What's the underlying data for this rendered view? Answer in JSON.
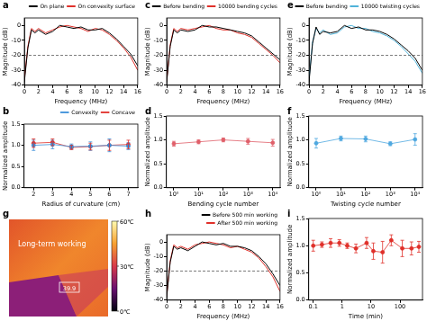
{
  "chart_data": [
    {
      "title": "a",
      "type": "line",
      "x_label": "Frequency (MHz)",
      "y_label": "Magnitude (dB)",
      "x": [
        0,
        0.5,
        1,
        1.5,
        2,
        3,
        4,
        5,
        6,
        7,
        8,
        9,
        10,
        11,
        12,
        13,
        14,
        15,
        16
      ],
      "series": [
        {
          "name": "On plane",
          "color": "#000000",
          "values": [
            -38,
            -15,
            -3,
            -5,
            -3,
            -6,
            -4,
            0,
            -1,
            -2,
            -1,
            -3,
            -3,
            -2,
            -5,
            -9,
            -14,
            -19,
            -27
          ]
        },
        {
          "name": "On convexity surface",
          "color": "#e0302a",
          "values": [
            -36,
            -14,
            -2,
            -4,
            -2,
            -5,
            -3,
            -1,
            0,
            -1,
            -2,
            -4,
            -2,
            -3,
            -6,
            -10,
            -15,
            -21,
            -30
          ]
        }
      ],
      "xlim": [
        0,
        16
      ],
      "xticks": [
        0,
        2,
        4,
        6,
        8,
        10,
        12,
        14,
        16
      ],
      "ylim": [
        -40,
        5
      ],
      "yticks": [
        -40,
        -30,
        -20,
        -10,
        0
      ],
      "reference_line": {
        "y": -20,
        "line_style": "dashed"
      },
      "legend": "top-right",
      "grid": false,
      "marker": "none"
    },
    {
      "title": "c",
      "type": "line",
      "x_label": "Frequency (MHz)",
      "y_label": "Magnitude (dB)",
      "x": [
        0,
        0.5,
        1,
        1.5,
        2,
        3,
        4,
        5,
        6,
        7,
        8,
        9,
        10,
        11,
        12,
        13,
        14,
        15,
        16
      ],
      "series": [
        {
          "name": "Before bending",
          "color": "#000000",
          "values": [
            -38,
            -14,
            -3,
            -5,
            -3,
            -4,
            -3,
            0,
            -1,
            -1,
            -2,
            -3,
            -4,
            -5,
            -7,
            -11,
            -15,
            -19,
            -23
          ]
        },
        {
          "name": "10000 bending cycles",
          "color": "#e0302a",
          "values": [
            -37,
            -13,
            -2,
            -4,
            -2,
            -3,
            -2,
            -1,
            0,
            -2,
            -3,
            -3,
            -5,
            -6,
            -8,
            -12,
            -16,
            -20,
            -25
          ]
        }
      ],
      "xlim": [
        0,
        16
      ],
      "xticks": [
        0,
        2,
        4,
        6,
        8,
        10,
        12,
        14,
        16
      ],
      "ylim": [
        -40,
        5
      ],
      "yticks": [
        -40,
        -30,
        -20,
        -10,
        0
      ],
      "reference_line": {
        "y": -20,
        "line_style": "dashed"
      },
      "legend": "top-right",
      "grid": false,
      "marker": "none"
    },
    {
      "title": "e",
      "type": "line",
      "x_label": "Frequency (MHz)",
      "y_label": "Magnitude (dB)",
      "x": [
        0,
        0.5,
        1,
        1.5,
        2,
        3,
        4,
        5,
        6,
        7,
        8,
        9,
        10,
        11,
        12,
        13,
        14,
        15,
        16
      ],
      "series": [
        {
          "name": "Before bending",
          "color": "#000000",
          "values": [
            -38,
            -12,
            -1,
            -6,
            -4,
            -5,
            -4,
            0,
            -2,
            -1,
            -3,
            -3,
            -4,
            -6,
            -9,
            -13,
            -17,
            -22,
            -30
          ]
        },
        {
          "name": "10000 twisting cycles",
          "color": "#4fb3d9",
          "values": [
            -36,
            -11,
            -2,
            -5,
            -3,
            -6,
            -5,
            -1,
            0,
            -2,
            -2,
            -4,
            -5,
            -7,
            -10,
            -14,
            -19,
            -24,
            -32
          ]
        }
      ],
      "xlim": [
        0,
        16
      ],
      "xticks": [
        0,
        2,
        4,
        6,
        8,
        10,
        12,
        14,
        16
      ],
      "ylim": [
        -40,
        5
      ],
      "yticks": [
        -40,
        -30,
        -20,
        -10,
        0
      ],
      "reference_line": {
        "y": -20,
        "line_style": "dashed"
      },
      "legend": "top-right",
      "grid": false,
      "marker": "none"
    },
    {
      "title": "b",
      "type": "line",
      "x_label": "Radius of curvature (cm)",
      "y_label": "Normalized amplitude",
      "x": [
        2,
        3,
        4,
        5,
        6,
        7
      ],
      "series": [
        {
          "name": "Convexity",
          "color": "#3a8fd9",
          "values": [
            1.0,
            1.02,
            0.97,
            0.98,
            1.0,
            0.98
          ],
          "errors": [
            0.12,
            0.1,
            0.06,
            0.1,
            0.15,
            0.08
          ]
        },
        {
          "name": "Concave",
          "color": "#e0302a",
          "values": [
            1.05,
            1.07,
            0.95,
            0.97,
            1.0,
            1.02
          ],
          "errors": [
            0.1,
            0.08,
            0.05,
            0.08,
            0.12,
            0.1
          ]
        }
      ],
      "xlim": [
        1.5,
        7.5
      ],
      "xticks": [
        2,
        3,
        4,
        5,
        6,
        7
      ],
      "ylim": [
        0,
        1.5
      ],
      "yticks": [
        {
          "value": 0,
          "label": "0.0"
        },
        {
          "value": 0.5,
          "label": "0.5"
        },
        {
          "value": 1,
          "label": "1.0"
        },
        {
          "value": 1.5,
          "label": "1.5"
        }
      ],
      "legend": "top-right",
      "grid": false,
      "marker": "circle"
    },
    {
      "title": "d",
      "type": "line",
      "x_label": "Bending cycle number",
      "y_label": "Normalized amplitude",
      "x": [
        1,
        10,
        100,
        1000,
        10000
      ],
      "color": "#e0606a",
      "values": [
        0.92,
        0.96,
        1.0,
        0.97,
        0.94
      ],
      "errors": [
        0.05,
        0.04,
        0.04,
        0.06,
        0.07
      ],
      "log": "x",
      "xlim": [
        0.5,
        20000
      ],
      "xticks": [
        {
          "value": 1,
          "label": "10⁰"
        },
        {
          "value": 10,
          "label": "10¹"
        },
        {
          "value": 100,
          "label": "10²"
        },
        {
          "value": 1000,
          "label": "10³"
        },
        {
          "value": 10000,
          "label": "10⁴"
        }
      ],
      "ylim": [
        0,
        1.5
      ],
      "yticks": [
        {
          "value": 0,
          "label": "0.0"
        },
        {
          "value": 0.5,
          "label": "0.5"
        },
        {
          "value": 1,
          "label": "1.0"
        },
        {
          "value": 1.5,
          "label": "1.5"
        }
      ],
      "grid": false,
      "marker": "circle"
    },
    {
      "title": "f",
      "type": "line",
      "x_label": "Twisting cycle number",
      "y_label": "Normalized amplitude",
      "x": [
        1,
        10,
        100,
        1000,
        10000
      ],
      "color": "#4fa8e0",
      "values": [
        0.93,
        1.03,
        1.02,
        0.92,
        1.01
      ],
      "errors": [
        0.1,
        0.05,
        0.06,
        0.04,
        0.12
      ],
      "log": "x",
      "xlim": [
        0.5,
        20000
      ],
      "xticks": [
        {
          "value": 1,
          "label": "10⁰"
        },
        {
          "value": 10,
          "label": "10¹"
        },
        {
          "value": 100,
          "label": "10²"
        },
        {
          "value": 1000,
          "label": "10³"
        },
        {
          "value": 10000,
          "label": "10⁴"
        }
      ],
      "ylim": [
        0,
        1.5
      ],
      "yticks": [
        {
          "value": 0,
          "label": "0.0"
        },
        {
          "value": 0.5,
          "label": "0.5"
        },
        {
          "value": 1,
          "label": "1.0"
        },
        {
          "value": 1.5,
          "label": "1.5"
        }
      ],
      "grid": false,
      "marker": "circle"
    },
    {
      "title": "h",
      "type": "line",
      "x_label": "Frequency (MHz)",
      "y_label": "Magnitude (dB)",
      "x": [
        0,
        0.5,
        1,
        1.5,
        2,
        3,
        4,
        5,
        6,
        7,
        8,
        9,
        10,
        11,
        12,
        13,
        14,
        15,
        16
      ],
      "series": [
        {
          "name": "Before 500 min working",
          "color": "#000000",
          "values": [
            -38,
            -14,
            -3,
            -5,
            -4,
            -6,
            -3,
            0,
            -1,
            -2,
            -1,
            -3,
            -3,
            -4,
            -6,
            -10,
            -15,
            -22,
            -30
          ]
        },
        {
          "name": "After 500 min working",
          "color": "#e0302a",
          "values": [
            -37,
            -13,
            -2,
            -4,
            -3,
            -5,
            -2,
            -1,
            0,
            -1,
            -2,
            -4,
            -3,
            -5,
            -7,
            -11,
            -17,
            -24,
            -34
          ]
        }
      ],
      "xlim": [
        0,
        16
      ],
      "xticks": [
        0,
        2,
        4,
        6,
        8,
        10,
        12,
        14,
        16
      ],
      "ylim": [
        -40,
        5
      ],
      "yticks": [
        -40,
        -30,
        -20,
        -10,
        0
      ],
      "reference_line": {
        "y": -20,
        "line_style": "dashed"
      },
      "legend": "top-right",
      "grid": false,
      "marker": "none"
    },
    {
      "title": "i",
      "type": "line",
      "x_label": "Time (min)",
      "y_label": "Normalized amplitude",
      "x": [
        0.1,
        0.2,
        0.4,
        0.8,
        1.5,
        3,
        7,
        12,
        25,
        50,
        120,
        250,
        450
      ],
      "color": "#e0302a",
      "values": [
        1.0,
        1.02,
        1.05,
        1.05,
        1.0,
        0.95,
        1.05,
        0.9,
        0.88,
        1.1,
        0.95,
        0.95,
        0.98
      ],
      "errors": [
        0.1,
        0.05,
        0.08,
        0.06,
        0.05,
        0.08,
        0.1,
        0.15,
        0.2,
        0.1,
        0.15,
        0.12,
        0.1
      ],
      "log": "x",
      "xlim": [
        0.07,
        600
      ],
      "xticks": [
        0.1,
        1,
        10,
        100
      ],
      "ylim": [
        0,
        1.5
      ],
      "yticks": [
        {
          "value": 0,
          "label": "0.0"
        },
        {
          "value": 0.5,
          "label": "0.5"
        },
        {
          "value": 1,
          "label": "1.0"
        },
        {
          "value": 1.5,
          "label": "1.5"
        }
      ],
      "grid": false,
      "marker": "circle"
    }
  ],
  "thermal_image": {
    "title": "g",
    "text": "Long-term working",
    "spot_temperature": 39.9,
    "colorbar": {
      "range": [
        0,
        60
      ],
      "ticks": [
        {
          "value": 0,
          "label": "0℃"
        },
        {
          "value": 30,
          "label": "30℃"
        },
        {
          "value": 60,
          "label": "60℃"
        }
      ]
    }
  }
}
